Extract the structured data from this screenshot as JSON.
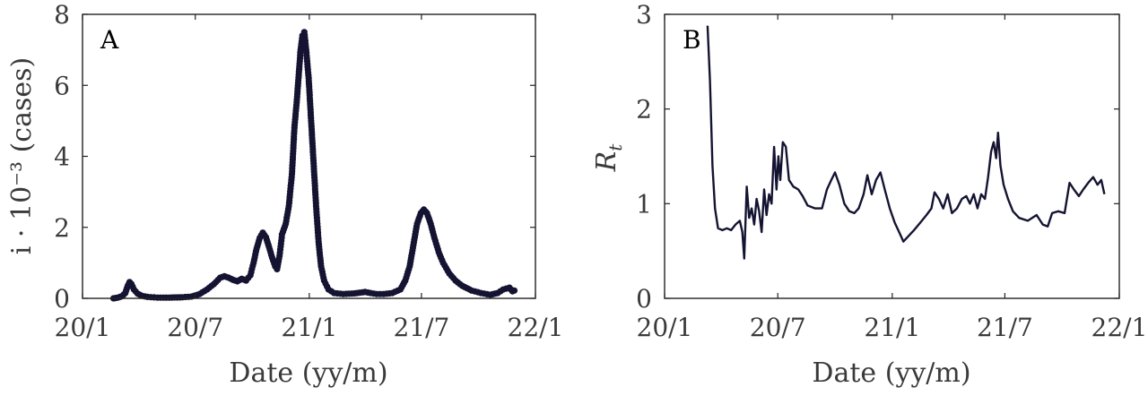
{
  "chart_data": [
    {
      "type": "line",
      "panel_label": "A",
      "xlabel": "Date (yy/m)",
      "ylabel": "i · 10⁻³ (cases)",
      "xlim": [
        "2020-01-01",
        "2022-01-01"
      ],
      "ylim": [
        0,
        8
      ],
      "xticks": [
        {
          "date": "2020-01-01",
          "label": "20/1"
        },
        {
          "date": "2020-07-01",
          "label": "20/7"
        },
        {
          "date": "2021-01-01",
          "label": "21/1"
        },
        {
          "date": "2021-07-01",
          "label": "21/7"
        },
        {
          "date": "2022-01-01",
          "label": "22/1"
        }
      ],
      "yticks": [
        0,
        2,
        4,
        6,
        8
      ],
      "markers": true,
      "color": "#141432",
      "points": [
        [
          "2020-02-20",
          0.0
        ],
        [
          "2020-02-27",
          0.02
        ],
        [
          "2020-03-05",
          0.06
        ],
        [
          "2020-03-10",
          0.15
        ],
        [
          "2020-03-14",
          0.35
        ],
        [
          "2020-03-17",
          0.46
        ],
        [
          "2020-03-20",
          0.4
        ],
        [
          "2020-03-24",
          0.25
        ],
        [
          "2020-03-30",
          0.13
        ],
        [
          "2020-04-06",
          0.07
        ],
        [
          "2020-04-15",
          0.04
        ],
        [
          "2020-05-01",
          0.02
        ],
        [
          "2020-05-20",
          0.02
        ],
        [
          "2020-06-10",
          0.03
        ],
        [
          "2020-06-25",
          0.05
        ],
        [
          "2020-07-08",
          0.12
        ],
        [
          "2020-07-20",
          0.25
        ],
        [
          "2020-07-31",
          0.4
        ],
        [
          "2020-08-10",
          0.58
        ],
        [
          "2020-08-17",
          0.62
        ],
        [
          "2020-08-24",
          0.58
        ],
        [
          "2020-08-31",
          0.52
        ],
        [
          "2020-09-07",
          0.48
        ],
        [
          "2020-09-14",
          0.55
        ],
        [
          "2020-09-21",
          0.5
        ],
        [
          "2020-09-28",
          0.65
        ],
        [
          "2020-10-03",
          1.0
        ],
        [
          "2020-10-08",
          1.4
        ],
        [
          "2020-10-13",
          1.7
        ],
        [
          "2020-10-18",
          1.85
        ],
        [
          "2020-10-23",
          1.72
        ],
        [
          "2020-10-28",
          1.45
        ],
        [
          "2020-11-02",
          1.15
        ],
        [
          "2020-11-07",
          0.9
        ],
        [
          "2020-11-10",
          0.82
        ],
        [
          "2020-11-14",
          1.2
        ],
        [
          "2020-11-18",
          1.8
        ],
        [
          "2020-11-24",
          2.1
        ],
        [
          "2020-11-29",
          2.6
        ],
        [
          "2020-12-04",
          3.5
        ],
        [
          "2020-12-08",
          4.8
        ],
        [
          "2020-12-12",
          5.6
        ],
        [
          "2020-12-15",
          6.3
        ],
        [
          "2020-12-18",
          7.0
        ],
        [
          "2020-12-21",
          7.4
        ],
        [
          "2020-12-24",
          7.5
        ],
        [
          "2020-12-27",
          7.0
        ],
        [
          "2020-12-31",
          6.2
        ],
        [
          "2021-01-04",
          5.0
        ],
        [
          "2021-01-08",
          3.8
        ],
        [
          "2021-01-12",
          2.6
        ],
        [
          "2021-01-16",
          1.6
        ],
        [
          "2021-01-20",
          0.9
        ],
        [
          "2021-01-25",
          0.5
        ],
        [
          "2021-02-01",
          0.25
        ],
        [
          "2021-02-10",
          0.15
        ],
        [
          "2021-02-25",
          0.12
        ],
        [
          "2021-03-15",
          0.14
        ],
        [
          "2021-04-01",
          0.18
        ],
        [
          "2021-04-10",
          0.15
        ],
        [
          "2021-04-20",
          0.12
        ],
        [
          "2021-05-01",
          0.12
        ],
        [
          "2021-05-15",
          0.15
        ],
        [
          "2021-05-28",
          0.25
        ],
        [
          "2021-06-05",
          0.5
        ],
        [
          "2021-06-12",
          0.9
        ],
        [
          "2021-06-18",
          1.5
        ],
        [
          "2021-06-24",
          2.1
        ],
        [
          "2021-06-30",
          2.4
        ],
        [
          "2021-07-05",
          2.5
        ],
        [
          "2021-07-10",
          2.4
        ],
        [
          "2021-07-16",
          2.1
        ],
        [
          "2021-07-22",
          1.7
        ],
        [
          "2021-07-29",
          1.3
        ],
        [
          "2021-08-05",
          1.0
        ],
        [
          "2021-08-15",
          0.7
        ],
        [
          "2021-08-25",
          0.5
        ],
        [
          "2021-09-05",
          0.35
        ],
        [
          "2021-09-20",
          0.22
        ],
        [
          "2021-10-05",
          0.15
        ],
        [
          "2021-10-20",
          0.1
        ],
        [
          "2021-11-01",
          0.15
        ],
        [
          "2021-11-10",
          0.25
        ],
        [
          "2021-11-20",
          0.3
        ],
        [
          "2021-11-25",
          0.2
        ],
        [
          "2021-11-28",
          0.22
        ]
      ]
    },
    {
      "type": "line",
      "panel_label": "B",
      "xlabel": "Date (yy/m)",
      "ylabel": "R",
      "ylabel_subscript": "t",
      "xlim": [
        "2020-01-01",
        "2022-01-01"
      ],
      "ylim": [
        0,
        3
      ],
      "xticks": [
        {
          "date": "2020-01-01",
          "label": "20/1"
        },
        {
          "date": "2020-07-01",
          "label": "20/7"
        },
        {
          "date": "2021-01-01",
          "label": "21/1"
        },
        {
          "date": "2021-07-01",
          "label": "21/7"
        },
        {
          "date": "2022-01-01",
          "label": "22/1"
        }
      ],
      "yticks": [
        0,
        1,
        2,
        3
      ],
      "markers": false,
      "color": "#141432",
      "points": [
        [
          "2020-03-10",
          2.88
        ],
        [
          "2020-03-14",
          2.3
        ],
        [
          "2020-03-18",
          1.4
        ],
        [
          "2020-03-22",
          0.95
        ],
        [
          "2020-03-27",
          0.74
        ],
        [
          "2020-04-03",
          0.72
        ],
        [
          "2020-04-10",
          0.74
        ],
        [
          "2020-04-17",
          0.72
        ],
        [
          "2020-04-24",
          0.78
        ],
        [
          "2020-05-01",
          0.82
        ],
        [
          "2020-05-05",
          0.7
        ],
        [
          "2020-05-08",
          0.42
        ],
        [
          "2020-05-12",
          1.18
        ],
        [
          "2020-05-16",
          0.85
        ],
        [
          "2020-05-20",
          0.95
        ],
        [
          "2020-05-24",
          0.78
        ],
        [
          "2020-05-28",
          1.05
        ],
        [
          "2020-06-01",
          0.92
        ],
        [
          "2020-06-05",
          0.7
        ],
        [
          "2020-06-09",
          1.15
        ],
        [
          "2020-06-13",
          0.88
        ],
        [
          "2020-06-17",
          1.1
        ],
        [
          "2020-06-21",
          1.0
        ],
        [
          "2020-06-25",
          1.6
        ],
        [
          "2020-06-29",
          1.15
        ],
        [
          "2020-07-02",
          1.5
        ],
        [
          "2020-07-05",
          1.25
        ],
        [
          "2020-07-09",
          1.65
        ],
        [
          "2020-07-14",
          1.6
        ],
        [
          "2020-07-19",
          1.25
        ],
        [
          "2020-07-26",
          1.18
        ],
        [
          "2020-08-03",
          1.15
        ],
        [
          "2020-08-10",
          1.08
        ],
        [
          "2020-08-18",
          0.98
        ],
        [
          "2020-08-30",
          0.95
        ],
        [
          "2020-09-10",
          0.95
        ],
        [
          "2020-09-18",
          1.15
        ],
        [
          "2020-09-25",
          1.25
        ],
        [
          "2020-10-01",
          1.33
        ],
        [
          "2020-10-08",
          1.2
        ],
        [
          "2020-10-16",
          1.0
        ],
        [
          "2020-10-24",
          0.92
        ],
        [
          "2020-11-01",
          0.9
        ],
        [
          "2020-11-08",
          0.95
        ],
        [
          "2020-11-16",
          1.1
        ],
        [
          "2020-11-22",
          1.3
        ],
        [
          "2020-11-29",
          1.1
        ],
        [
          "2020-12-06",
          1.25
        ],
        [
          "2020-12-13",
          1.33
        ],
        [
          "2020-12-20",
          1.15
        ],
        [
          "2020-12-28",
          0.95
        ],
        [
          "2021-01-05",
          0.8
        ],
        [
          "2021-01-12",
          0.7
        ],
        [
          "2021-01-19",
          0.6
        ],
        [
          "2021-01-26",
          0.65
        ],
        [
          "2021-02-05",
          0.72
        ],
        [
          "2021-02-15",
          0.8
        ],
        [
          "2021-02-25",
          0.88
        ],
        [
          "2021-03-05",
          0.95
        ],
        [
          "2021-03-10",
          1.12
        ],
        [
          "2021-03-17",
          1.05
        ],
        [
          "2021-03-24",
          0.95
        ],
        [
          "2021-03-31",
          1.1
        ],
        [
          "2021-04-07",
          0.9
        ],
        [
          "2021-04-15",
          0.95
        ],
        [
          "2021-04-23",
          1.05
        ],
        [
          "2021-04-30",
          1.08
        ],
        [
          "2021-05-06",
          1.0
        ],
        [
          "2021-05-12",
          1.1
        ],
        [
          "2021-05-18",
          0.95
        ],
        [
          "2021-05-24",
          1.1
        ],
        [
          "2021-05-30",
          1.05
        ],
        [
          "2021-06-04",
          1.28
        ],
        [
          "2021-06-09",
          1.55
        ],
        [
          "2021-06-13",
          1.65
        ],
        [
          "2021-06-17",
          1.48
        ],
        [
          "2021-06-20",
          1.75
        ],
        [
          "2021-06-24",
          1.4
        ],
        [
          "2021-06-29",
          1.2
        ],
        [
          "2021-07-06",
          1.05
        ],
        [
          "2021-07-14",
          0.92
        ],
        [
          "2021-07-24",
          0.85
        ],
        [
          "2021-08-07",
          0.82
        ],
        [
          "2021-08-21",
          0.88
        ],
        [
          "2021-08-31",
          0.78
        ],
        [
          "2021-09-08",
          0.76
        ],
        [
          "2021-09-15",
          0.9
        ],
        [
          "2021-09-25",
          0.92
        ],
        [
          "2021-10-05",
          0.9
        ],
        [
          "2021-10-13",
          1.22
        ],
        [
          "2021-10-20",
          1.15
        ],
        [
          "2021-10-28",
          1.08
        ],
        [
          "2021-11-04",
          1.15
        ],
        [
          "2021-11-12",
          1.22
        ],
        [
          "2021-11-20",
          1.28
        ],
        [
          "2021-11-27",
          1.2
        ],
        [
          "2021-12-03",
          1.25
        ],
        [
          "2021-12-08",
          1.1
        ]
      ]
    }
  ]
}
